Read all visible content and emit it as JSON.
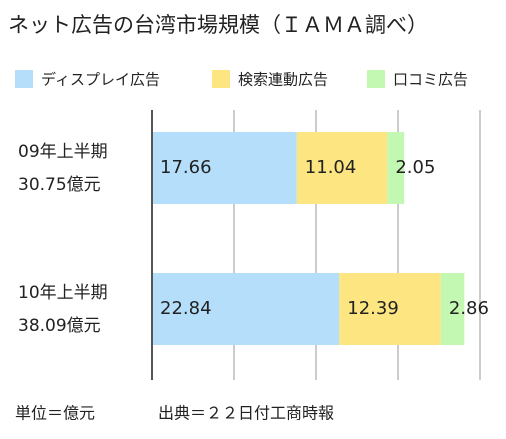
{
  "chart_data": {
    "type": "stacked_barh",
    "title": "ネット広告の台湾市場規模（ＩＡＭＡ調べ）",
    "categories": [
      "09年上半期",
      "10年上半期"
    ],
    "category_sublabels": [
      "30.75億元",
      "38.09億元"
    ],
    "series": [
      {
        "name": "ディスプレイ広告",
        "color": "#b5defb",
        "values": [
          17.66,
          22.84
        ]
      },
      {
        "name": "検索連動広告",
        "color": "#fde581",
        "values": [
          11.04,
          12.39
        ]
      },
      {
        "name": "口コミ広告",
        "color": "#c3f8b2",
        "values": [
          2.05,
          2.86
        ]
      }
    ],
    "xlim": [
      0,
      40
    ],
    "xticks": [
      0,
      10,
      20,
      30,
      40
    ],
    "grid": true,
    "legend": "top",
    "notes": [
      "単位＝億元",
      "出典＝２２日付工商時報"
    ]
  }
}
